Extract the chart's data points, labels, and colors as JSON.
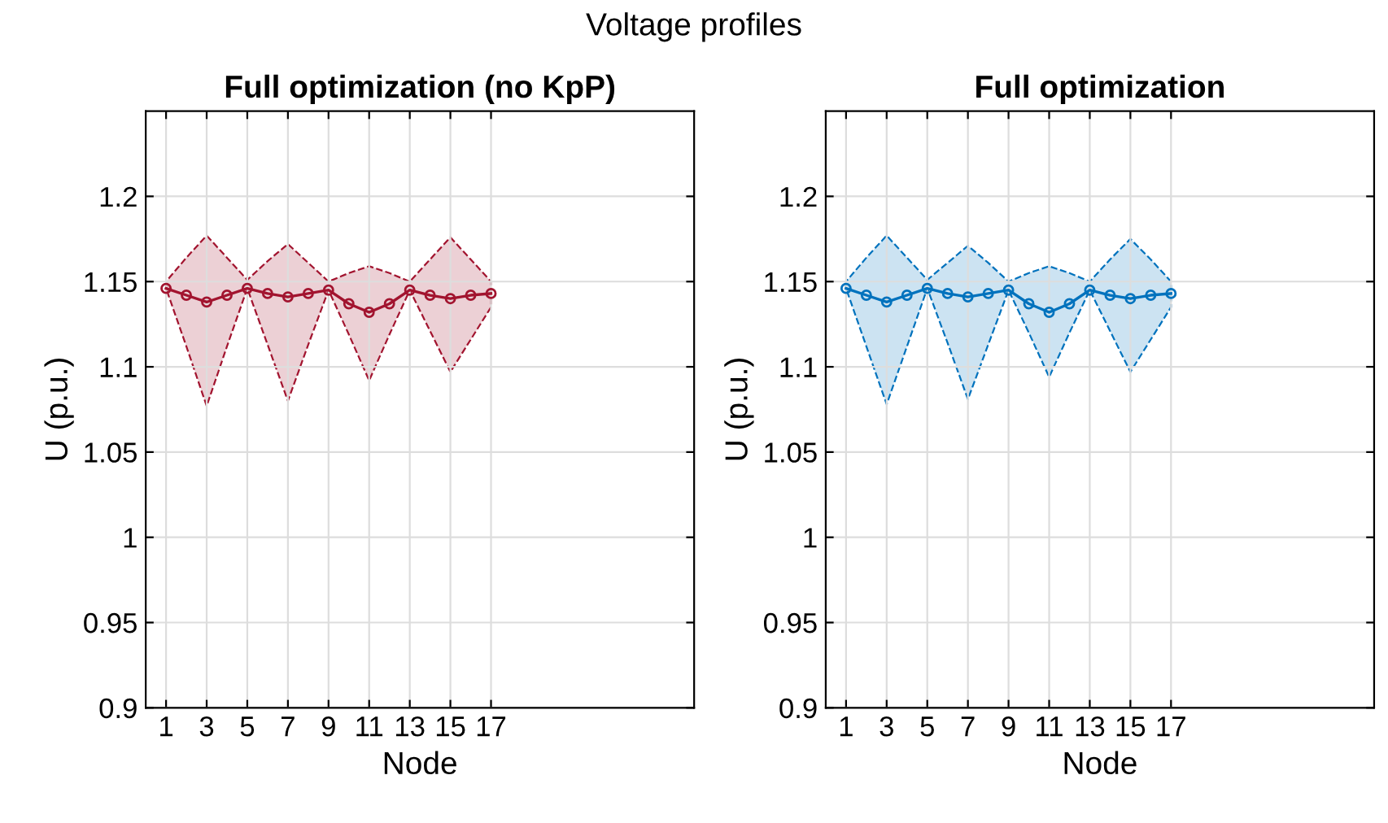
{
  "chart_data": [
    {
      "type": "line",
      "title": "Full optimization (no KpP)",
      "annotations": [
        "Voltage profiles"
      ],
      "xlabel": "Node",
      "ylabel": "U (p.u.)",
      "x": [
        1,
        2,
        3,
        4,
        5,
        6,
        7,
        8,
        9,
        10,
        11,
        12,
        13,
        14,
        15,
        16,
        17
      ],
      "series": [
        {
          "color": "#a2142f",
          "values": [
            1.146,
            1.142,
            1.138,
            1.142,
            1.146,
            1.143,
            1.141,
            1.143,
            1.145,
            1.137,
            1.132,
            1.137,
            1.145,
            1.142,
            1.14,
            1.142,
            1.143
          ],
          "upper": [
            1.15,
            1.164,
            1.177,
            1.164,
            1.151,
            1.162,
            1.172,
            1.161,
            1.15,
            1.155,
            1.159,
            1.155,
            1.15,
            1.163,
            1.176,
            1.163,
            1.15
          ],
          "lower": [
            1.146,
            1.112,
            1.077,
            1.112,
            1.146,
            1.113,
            1.08,
            1.113,
            1.145,
            1.119,
            1.092,
            1.119,
            1.145,
            1.121,
            1.097,
            1.116,
            1.135
          ]
        }
      ],
      "xlim": [
        0,
        27
      ],
      "ylim": [
        0.9,
        1.25
      ],
      "xticks": [
        1,
        3,
        5,
        7,
        9,
        11,
        13,
        15,
        17
      ],
      "yticks": [
        0.9,
        0.95,
        1,
        1.05,
        1.1,
        1.15,
        1.2
      ],
      "grid": true,
      "marker": "circle",
      "line_style": "solid"
    },
    {
      "type": "line",
      "title": "Full optimization",
      "xlabel": "Node",
      "ylabel": "U (p.u.)",
      "x": [
        1,
        2,
        3,
        4,
        5,
        6,
        7,
        8,
        9,
        10,
        11,
        12,
        13,
        14,
        15,
        16,
        17
      ],
      "series": [
        {
          "color": "#0072bd",
          "values": [
            1.146,
            1.142,
            1.138,
            1.142,
            1.146,
            1.143,
            1.141,
            1.143,
            1.145,
            1.137,
            1.132,
            1.137,
            1.145,
            1.142,
            1.14,
            1.142,
            1.143
          ],
          "upper": [
            1.15,
            1.164,
            1.177,
            1.164,
            1.151,
            1.161,
            1.171,
            1.161,
            1.15,
            1.155,
            1.159,
            1.155,
            1.15,
            1.163,
            1.175,
            1.163,
            1.15
          ],
          "lower": [
            1.146,
            1.112,
            1.078,
            1.112,
            1.146,
            1.114,
            1.081,
            1.113,
            1.145,
            1.12,
            1.094,
            1.12,
            1.145,
            1.121,
            1.097,
            1.116,
            1.135
          ]
        }
      ],
      "xlim": [
        0,
        27
      ],
      "ylim": [
        0.9,
        1.25
      ],
      "xticks": [
        1,
        3,
        5,
        7,
        9,
        11,
        13,
        15,
        17
      ],
      "yticks": [
        0.9,
        0.95,
        1,
        1.05,
        1.1,
        1.15,
        1.2
      ],
      "grid": true,
      "marker": "circle",
      "line_style": "solid"
    }
  ]
}
